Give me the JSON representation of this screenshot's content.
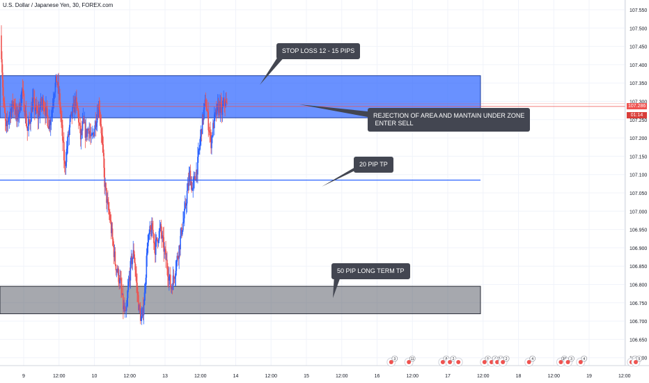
{
  "chart_data": {
    "type": "candlestick",
    "title": "U.S. Dollar / Japanese Yen, 30, FOREX.com",
    "y_axis": {
      "range": [
        106.575,
        107.575
      ],
      "ticks": [
        "107.550",
        "107.500",
        "107.450",
        "107.400",
        "107.350",
        "107.300",
        "107.250",
        "107.200",
        "107.150",
        "107.100",
        "107.050",
        "107.000",
        "106.950",
        "106.900",
        "106.850",
        "106.800",
        "106.750",
        "106.700",
        "106.650",
        "106.600"
      ]
    },
    "x_axis": {
      "ticks": [
        "9",
        "12:00",
        "10",
        "12:00",
        "13",
        "12:00",
        "14",
        "12:00",
        "15",
        "12:00",
        "16",
        "12:00",
        "17",
        "12:00",
        "18",
        "12:00",
        "19",
        "12:00"
      ]
    },
    "current_price": "107.286",
    "countdown": "01:14",
    "colors": {
      "up": "#2962ff",
      "down": "#ef5350",
      "zone_blue": "#2962ff",
      "zone_gray": "#5d606b",
      "line_blue": "#2962ff",
      "price_line": "#ef5350"
    },
    "zones": [
      {
        "name": "supply-zone",
        "y_top": 107.37,
        "y_bottom": 107.255
      },
      {
        "name": "long-term-tp-zone",
        "y_top": 106.795,
        "y_bottom": 106.72
      }
    ],
    "levels": [
      {
        "name": "20-pip-tp-line",
        "y": 107.085
      }
    ],
    "candle_path": [
      107.48,
      107.3,
      107.22,
      107.26,
      107.28,
      107.3,
      107.25,
      107.28,
      107.33,
      107.28,
      107.22,
      107.25,
      107.3,
      107.28,
      107.26,
      107.29,
      107.3,
      107.27,
      107.24,
      107.26,
      107.33,
      107.36,
      107.31,
      107.22,
      107.12,
      107.18,
      107.24,
      107.27,
      107.3,
      107.27,
      107.2,
      107.24,
      107.21,
      107.23,
      107.19,
      107.22,
      107.26,
      107.29,
      107.2,
      107.08,
      107.02,
      106.98,
      106.92,
      106.86,
      106.83,
      106.8,
      106.74,
      106.71,
      106.8,
      106.86,
      106.89,
      106.8,
      106.73,
      106.7,
      106.77,
      106.9,
      106.94,
      106.95,
      106.9,
      106.93,
      106.95,
      106.91,
      106.87,
      106.83,
      106.79,
      106.82,
      106.86,
      106.9,
      106.95,
      106.99,
      107.05,
      107.1,
      107.06,
      107.09,
      107.13,
      107.2,
      107.26,
      107.3,
      107.24,
      107.19,
      107.24,
      107.27,
      107.29,
      107.27,
      107.3,
      107.286
    ],
    "events": [
      {
        "x_day": 14.2,
        "label": "3"
      },
      {
        "x_day": 14.45,
        "label": "11"
      },
      {
        "x_day": 14.93,
        "label": "8"
      },
      {
        "x_day": 15.03,
        "label": "2"
      },
      {
        "x_day": 15.15,
        "label": ""
      },
      {
        "x_day": 15.52,
        "label": "5"
      },
      {
        "x_day": 15.62,
        "label": "4"
      },
      {
        "x_day": 15.7,
        "label": "14"
      },
      {
        "x_day": 15.78,
        "label": "2"
      },
      {
        "x_day": 16.15,
        "label": "4"
      },
      {
        "x_day": 16.6,
        "label": "38"
      },
      {
        "x_day": 16.7,
        "label": "3"
      },
      {
        "x_day": 16.88,
        "label": "4"
      },
      {
        "x_day": 17.6,
        "label": "4"
      },
      {
        "x_day": 17.66,
        "label": "5"
      }
    ]
  },
  "annotations": [
    {
      "text": "STOP LOSS 12 - 15 PIPS"
    },
    {
      "text": "REJECTION OF AREA AND MANTAIN UNDER ZONE\n ENTER SELL"
    },
    {
      "text": "20 PIP TP"
    },
    {
      "text": "50 PIP LONG TERM TP"
    }
  ]
}
